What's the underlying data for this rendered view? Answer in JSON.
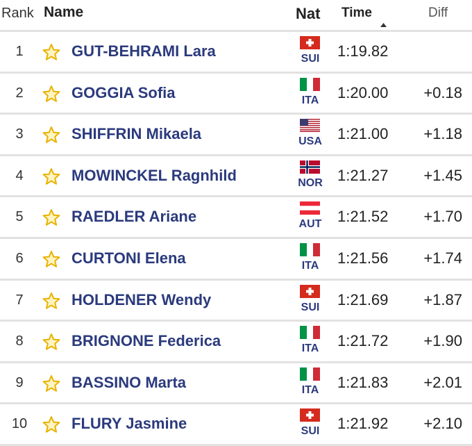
{
  "table": {
    "header": {
      "rank": "Rank",
      "name": "Name",
      "nat": "Nat",
      "time": "Time",
      "diff": "Diff"
    },
    "rows": [
      {
        "rank": "1",
        "name": "GUT-BEHRAMI Lara",
        "nat": "SUI",
        "time": "1:19.82"
      },
      {
        "rank": "2",
        "name": "GOGGIA Sofia",
        "nat": "ITA",
        "time": "1:20.00",
        "diff": "+0.18"
      },
      {
        "rank": "3",
        "name": "SHIFFRIN Mikaela",
        "nat": "USA",
        "time": "1:21.00",
        "diff": "+1.18"
      },
      {
        "rank": "4",
        "name": "MOWINCKEL Ragnhild",
        "nat": "NOR",
        "time": "1:21.27",
        "diff": "+1.45"
      },
      {
        "rank": "5",
        "name": "RAEDLER Ariane",
        "nat": "AUT",
        "time": "1:21.52",
        "diff": "+1.70"
      },
      {
        "rank": "6",
        "name": "CURTONI Elena",
        "nat": "ITA",
        "time": "1:21.56",
        "diff": "+1.74"
      },
      {
        "rank": "7",
        "name": "HOLDENER Wendy",
        "nat": "SUI",
        "time": "1:21.69",
        "diff": "+1.87"
      },
      {
        "rank": "8",
        "name": "BRIGNONE Federica",
        "nat": "ITA",
        "time": "1:21.72",
        "diff": "+1.90"
      },
      {
        "rank": "9",
        "name": "BASSINO Marta",
        "nat": "ITA",
        "time": "1:21.83",
        "diff": "+2.01"
      },
      {
        "rank": "10",
        "name": "FLURY Jasmine",
        "nat": "SUI",
        "time": "1:21.92",
        "diff": "+2.10"
      }
    ]
  }
}
